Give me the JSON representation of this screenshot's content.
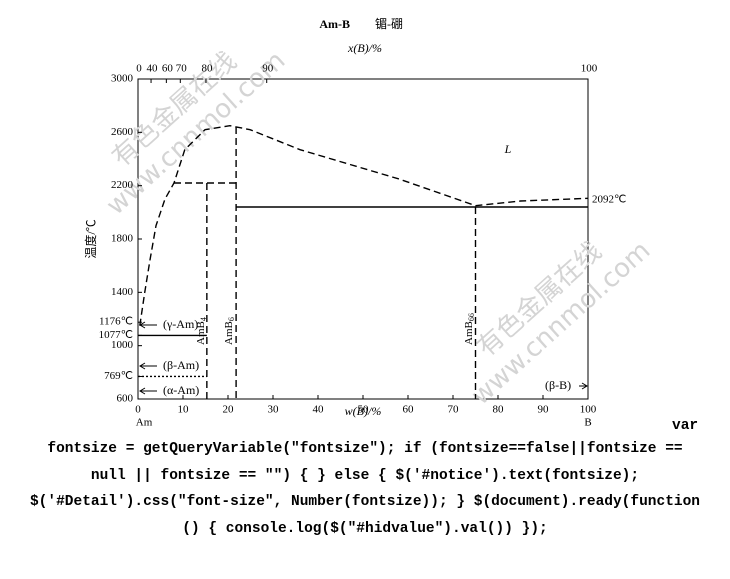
{
  "chart_data": {
    "type": "line",
    "title": "Am-B",
    "subtitle": "镅-硼",
    "xlabel": "w(B)/%",
    "x2label": "x(B)/%",
    "ylabel": "温度/℃",
    "xlim": [
      0,
      100
    ],
    "xticks": [
      0,
      10,
      20,
      30,
      40,
      50,
      60,
      70,
      80,
      90,
      100
    ],
    "x2ticks": [
      0,
      {
        "value": 2.9,
        "label": "40"
      },
      {
        "value": 6.3,
        "label": "60"
      },
      {
        "value": 9.4,
        "label": "70"
      },
      {
        "value": 15.1,
        "label": "80"
      },
      {
        "value": 28.6,
        "label": "90"
      },
      100
    ],
    "ylim": [
      600,
      3000
    ],
    "yticks": [
      600,
      1000,
      1400,
      1800,
      2200,
      2600,
      3000,
      {
        "value": 1176,
        "label": "1176℃"
      },
      {
        "value": 1077,
        "label": "1077℃"
      },
      {
        "value": 769,
        "label": "769℃"
      }
    ],
    "end_labels": [
      "Am",
      "B"
    ],
    "right_label": {
      "value": 2092,
      "label": "2092℃"
    },
    "series": [
      {
        "color": "#000000",
        "dash": "dashed",
        "x": [
          0.4,
          1.5,
          2.7,
          4,
          6,
          8,
          10.4,
          14.9,
          20.4,
          24.9,
          36,
          58,
          75,
          85,
          100
        ],
        "values": [
          1150,
          1400,
          1650,
          1900,
          2100,
          2220,
          2470,
          2620,
          2650,
          2620,
          2470,
          2250,
          2050,
          2085,
          2105
        ]
      },
      {
        "color": "#000000",
        "dash": "dashed",
        "x": [
          8,
          21.8
        ],
        "values": [
          2220,
          2220
        ]
      },
      {
        "color": "#000000",
        "dash": "dashed",
        "x": [
          15.3,
          15.3
        ],
        "values": [
          2220,
          600
        ]
      },
      {
        "color": "#000000",
        "dash": "dashed",
        "x": [
          21.8,
          21.8
        ],
        "values": [
          2640,
          600
        ]
      },
      {
        "color": "#000000",
        "dash": "solid",
        "x": [
          21.8,
          100
        ],
        "values": [
          2040,
          2040
        ]
      },
      {
        "color": "#000000",
        "dash": "dashed",
        "x": [
          75,
          75
        ],
        "values": [
          2040,
          600
        ]
      },
      {
        "color": "#000000",
        "dash": "solid",
        "x": [
          0,
          15.3
        ],
        "values": [
          1077,
          1077
        ]
      },
      {
        "color": "#000000",
        "dash": "dotted",
        "x": [
          0,
          15.3
        ],
        "values": [
          769,
          769
        ]
      }
    ],
    "annotations": [
      "L",
      "(γ-Am)",
      "(β-Am)",
      "(α-Am)",
      "(β-B)"
    ],
    "compounds": [
      {
        "text": "AmB",
        "sub": "4"
      },
      {
        "text": "AmB",
        "sub": "6"
      },
      {
        "text": "AmB",
        "sub": "66"
      }
    ],
    "watermark": [
      "有色金属在线",
      "www.cnnmol.com"
    ]
  },
  "code_lines": [
    "var",
    "fontsize = getQueryVariable(\"fontsize\"); if (fontsize==false||fontsize ==",
    "null || fontsize == \"\") { } else { $('#notice').text(fontsize);",
    "$('#Detail').css(\"font-size\", Number(fontsize)); } $(document).ready(function",
    "() { console.log($(\"#hidvalue\").val()) });"
  ]
}
